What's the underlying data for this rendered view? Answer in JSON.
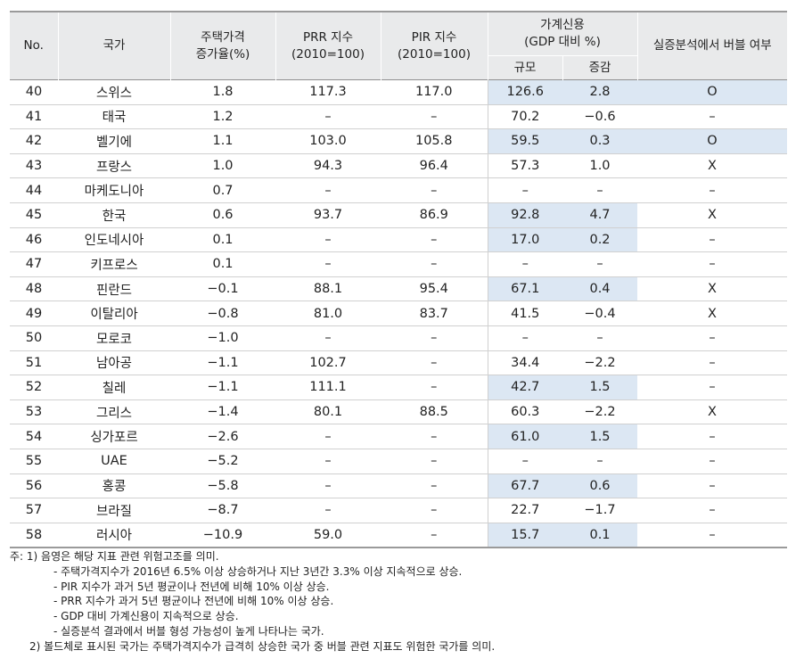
{
  "table": {
    "headers": {
      "no": "No.",
      "country": "국가",
      "price_growth": [
        "주택가격",
        "증가율(%)"
      ],
      "prr": [
        "PRR 지수",
        "(2010=100)"
      ],
      "pir": [
        "PIR 지수",
        "(2010=100)"
      ],
      "credit": [
        "가계신용",
        "(GDP 대비 %)"
      ],
      "credit_size": "규모",
      "credit_change": "증감",
      "bubble": "실증분석에서 버블 여부"
    },
    "rows": [
      {
        "no": "40",
        "country": "스위스",
        "growth": "1.8",
        "prr": "117.3",
        "pir": "117.0",
        "size": "126.6",
        "change": "2.8",
        "bubble": "O",
        "hl_credit": true,
        "hl_bubble": true
      },
      {
        "no": "41",
        "country": "태국",
        "growth": "1.2",
        "prr": "–",
        "pir": "–",
        "size": "70.2",
        "change": "−0.6",
        "bubble": "–",
        "hl_credit": false,
        "hl_bubble": false
      },
      {
        "no": "42",
        "country": "벨기에",
        "growth": "1.1",
        "prr": "103.0",
        "pir": "105.8",
        "size": "59.5",
        "change": "0.3",
        "bubble": "O",
        "hl_credit": true,
        "hl_bubble": true
      },
      {
        "no": "43",
        "country": "프랑스",
        "growth": "1.0",
        "prr": "94.3",
        "pir": "96.4",
        "size": "57.3",
        "change": "1.0",
        "bubble": "X",
        "hl_credit": false,
        "hl_bubble": false
      },
      {
        "no": "44",
        "country": "마케도니아",
        "growth": "0.7",
        "prr": "–",
        "pir": "–",
        "size": "–",
        "change": "–",
        "bubble": "–",
        "hl_credit": false,
        "hl_bubble": false
      },
      {
        "no": "45",
        "country": "한국",
        "growth": "0.6",
        "prr": "93.7",
        "pir": "86.9",
        "size": "92.8",
        "change": "4.7",
        "bubble": "X",
        "hl_credit": true,
        "hl_bubble": false
      },
      {
        "no": "46",
        "country": "인도네시아",
        "growth": "0.1",
        "prr": "–",
        "pir": "–",
        "size": "17.0",
        "change": "0.2",
        "bubble": "–",
        "hl_credit": true,
        "hl_bubble": false
      },
      {
        "no": "47",
        "country": "키프로스",
        "growth": "0.1",
        "prr": "–",
        "pir": "–",
        "size": "–",
        "change": "–",
        "bubble": "–",
        "hl_credit": false,
        "hl_bubble": false
      },
      {
        "no": "48",
        "country": "핀란드",
        "growth": "−0.1",
        "prr": "88.1",
        "pir": "95.4",
        "size": "67.1",
        "change": "0.4",
        "bubble": "X",
        "hl_credit": true,
        "hl_bubble": false
      },
      {
        "no": "49",
        "country": "이탈리아",
        "growth": "−0.8",
        "prr": "81.0",
        "pir": "83.7",
        "size": "41.5",
        "change": "−0.4",
        "bubble": "X",
        "hl_credit": false,
        "hl_bubble": false
      },
      {
        "no": "50",
        "country": "모로코",
        "growth": "−1.0",
        "prr": "–",
        "pir": "–",
        "size": "–",
        "change": "–",
        "bubble": "–",
        "hl_credit": false,
        "hl_bubble": false
      },
      {
        "no": "51",
        "country": "남아공",
        "growth": "−1.1",
        "prr": "102.7",
        "pir": "–",
        "size": "34.4",
        "change": "−2.2",
        "bubble": "–",
        "hl_credit": false,
        "hl_bubble": false
      },
      {
        "no": "52",
        "country": "칠레",
        "growth": "−1.1",
        "prr": "111.1",
        "pir": "–",
        "size": "42.7",
        "change": "1.5",
        "bubble": "–",
        "hl_credit": true,
        "hl_bubble": false
      },
      {
        "no": "53",
        "country": "그리스",
        "growth": "−1.4",
        "prr": "80.1",
        "pir": "88.5",
        "size": "60.3",
        "change": "−2.2",
        "bubble": "X",
        "hl_credit": false,
        "hl_bubble": false
      },
      {
        "no": "54",
        "country": "싱가포르",
        "growth": "−2.6",
        "prr": "–",
        "pir": "–",
        "size": "61.0",
        "change": "1.5",
        "bubble": "–",
        "hl_credit": true,
        "hl_bubble": false
      },
      {
        "no": "55",
        "country": "UAE",
        "growth": "−5.2",
        "prr": "–",
        "pir": "–",
        "size": "–",
        "change": "–",
        "bubble": "–",
        "hl_credit": false,
        "hl_bubble": false
      },
      {
        "no": "56",
        "country": "홍콩",
        "growth": "−5.8",
        "prr": "–",
        "pir": "–",
        "size": "67.7",
        "change": "0.6",
        "bubble": "–",
        "hl_credit": true,
        "hl_bubble": false
      },
      {
        "no": "57",
        "country": "브라질",
        "growth": "−8.7",
        "prr": "–",
        "pir": "–",
        "size": "22.7",
        "change": "−1.7",
        "bubble": "–",
        "hl_credit": false,
        "hl_bubble": false
      },
      {
        "no": "58",
        "country": "러시아",
        "growth": "−10.9",
        "prr": "59.0",
        "pir": "–",
        "size": "15.7",
        "change": "0.1",
        "bubble": "–",
        "hl_credit": true,
        "hl_bubble": false
      }
    ]
  },
  "notes": {
    "note1": "주: 1) 음영은 해당 지표 관련 위험고조를 의미.",
    "bullets": [
      "- 주택가격지수가 2016년 6.5% 이상 상승하거나 지난 3년간 3.3% 이상 지속적으로 상승.",
      "- PIR 지수가 과거 5년 평균이나 전년에 비해 10% 이상 상승.",
      "- PRR 지수가 과거 5년 평균이나 전년에 비해 10% 이상 상승.",
      "- GDP 대비 가계신용이 지속적으로 상승.",
      "- 실증분석 결과에서 버블 형성 가능성이 높게 나타나는 국가."
    ],
    "note2": "2) 볼드체로 표시된 국가는 주택가격지수가 급격히 상승한 국가 중 버블 관련 지표도 위험한 국가를 의미."
  },
  "colors": {
    "header_bg": "#e9eaeb",
    "highlight": "#dce7f3",
    "rule": "#9a9a9a"
  }
}
